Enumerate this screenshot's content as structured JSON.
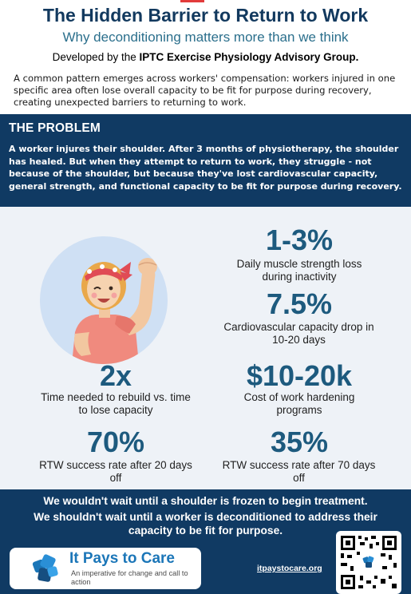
{
  "header": {
    "title": "The Hidden Barrier to Return to Work",
    "subtitle": "Why deconditioning matters more than we think",
    "developed_prefix": "Developed by the ",
    "developed_org": "IPTC Exercise Physiology Advisory Group.",
    "intro": "A common pattern emerges across workers' compensation: workers injured in one specific area often lose overall capacity to be fit for purpose during recovery, creating unexpected barriers to returning to work."
  },
  "problem": {
    "heading": "THE PROBLEM",
    "body": "A worker injures their shoulder. After 3 months of physiotherapy, the shoulder has healed. But when they attempt to return to work, they struggle - not because of the shoulder, but because they've lost cardiovascular capacity, general strength, and functional capacity to be fit for purpose during recovery."
  },
  "stats": [
    {
      "value": "1-3%",
      "label": "Daily muscle strength loss during inactivity"
    },
    {
      "value": "7.5%",
      "label": "Cardiovascular capacity drop in 10-20 days"
    },
    {
      "value": "2x",
      "label": "Time needed to rebuild vs. time to lose capacity"
    },
    {
      "value": "$10-20k",
      "label": "Cost of work hardening programs"
    },
    {
      "value": "70%",
      "label": "RTW success rate after 20 days off"
    },
    {
      "value": "35%",
      "label": "RTW success rate after 70 days off"
    }
  ],
  "footer": {
    "line1": "We wouldn't wait until a shoulder is frozen to begin treatment.",
    "line2": "We shouldn't wait until a worker is deconditioned to address their capacity to be fit for purpose.",
    "brand": "It Pays to Care",
    "tagline": "An imperative for change and call to action",
    "website": "itpaystocare.org"
  },
  "colors": {
    "navy": "#103a63",
    "accent_teal": "#1d5a7e",
    "brand_blue": "#1b76b8",
    "panel_bg": "#eef2f7"
  },
  "icons": [
    "woman-flexing-illustration",
    "it-pays-to-care-logo-icon",
    "qr-code-icon"
  ]
}
